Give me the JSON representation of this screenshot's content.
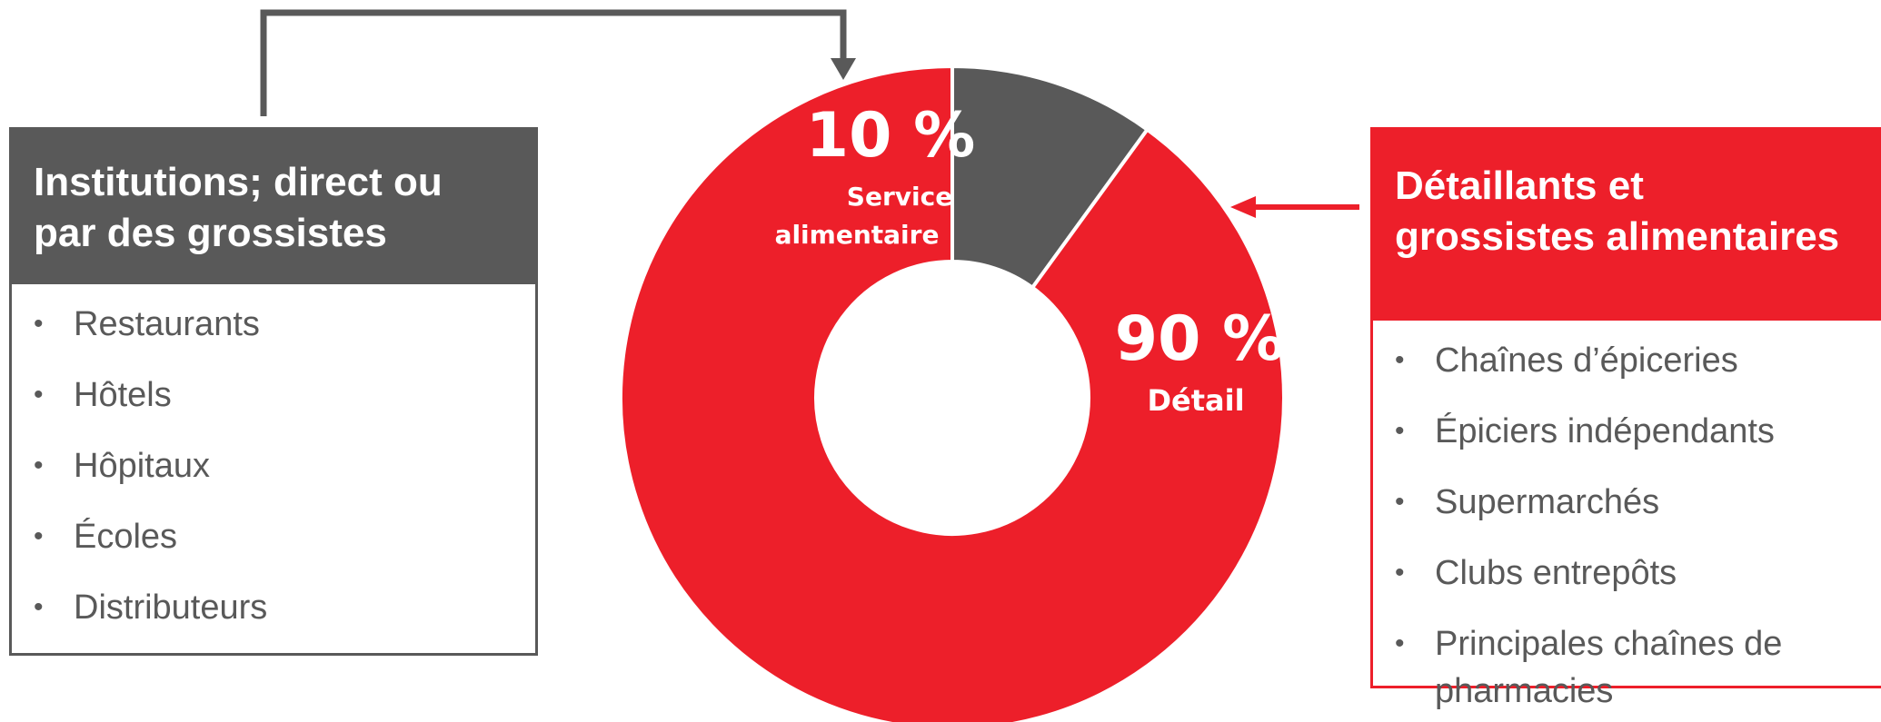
{
  "left_panel": {
    "heading_line1": "Institutions; direct ou",
    "heading_line2": "par des grossistes",
    "items": [
      "Restaurants",
      "Hôtels",
      "Hôpitaux",
      "Écoles",
      "Distributeurs"
    ]
  },
  "right_panel": {
    "heading_line1": "Détaillants et",
    "heading_line2": "grossistes alimentaires",
    "items": [
      "Chaînes d’épiceries",
      "Épiciers indépendants",
      "Supermarchés",
      "Clubs entrepôts",
      "Principales chaînes de",
      "pharmacies"
    ]
  },
  "bullet_char": "•",
  "colors": {
    "red": "#ed1f2a",
    "gray": "#595959",
    "white": "#ffffff"
  },
  "chart_data": {
    "type": "pie",
    "style": "donut",
    "series": [
      {
        "name": "Service alimentaire",
        "value": 10,
        "pct_label": "10 %",
        "label_line1": "Service",
        "label_line2": "alimentaire",
        "color": "#595959"
      },
      {
        "name": "Détail",
        "value": 90,
        "pct_label": "90 %",
        "label_line1": "Détail",
        "color": "#ed1f2a"
      }
    ],
    "start": "top, clockwise"
  }
}
